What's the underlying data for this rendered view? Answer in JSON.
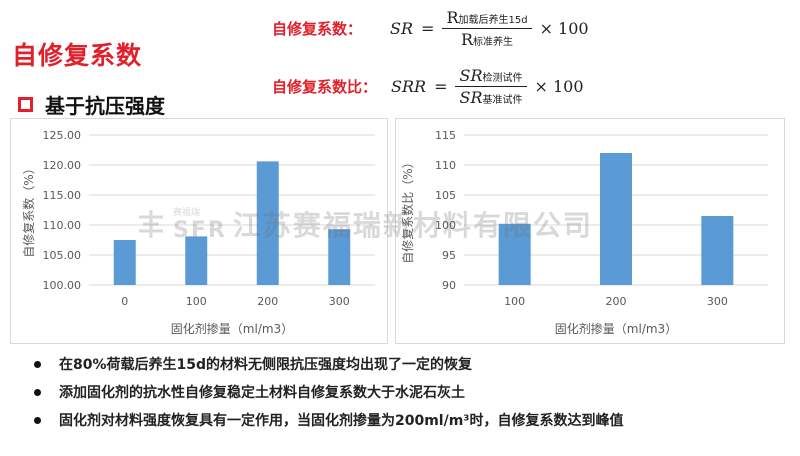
{
  "title": "自修复系数",
  "subtitle": "基于抗压强度",
  "formula1": {
    "label": "自修复系数：",
    "lhs": "SR",
    "num_base": "R",
    "num_sub": "加载后养生15d",
    "den_base": "R",
    "den_sub": "标准养生",
    "factor": "× 100"
  },
  "formula2": {
    "label": "自修复系数比：",
    "lhs": "SRR",
    "num_base": "SR",
    "num_sub": "检测试件",
    "den_base": "SR",
    "den_sub": "基准试件",
    "factor": "× 100"
  },
  "watermark": {
    "text": "江苏赛福瑞新材料有限公司",
    "logo": "SFR",
    "small": "赛福瑞"
  },
  "chart_data": [
    {
      "type": "bar",
      "categories": [
        "0",
        "100",
        "200",
        "300"
      ],
      "values": [
        107.5,
        108.1,
        120.6,
        109.3
      ],
      "xlabel": "固化剂掺量（ml/m3）",
      "ylabel": "自修复系数（%）",
      "ylim": [
        100,
        125
      ],
      "yticks": [
        "100.00",
        "105.00",
        "110.00",
        "115.00",
        "120.00",
        "125.00"
      ],
      "color": "#5b9bd5",
      "grid": true
    },
    {
      "type": "bar",
      "categories": [
        "100",
        "200",
        "300"
      ],
      "values": [
        100.2,
        112.0,
        101.5
      ],
      "xlabel": "固化剂掺量（ml/m3）",
      "ylabel": "自修复系数比（%）",
      "ylim": [
        90,
        115
      ],
      "yticks": [
        "90",
        "95",
        "100",
        "105",
        "110",
        "115"
      ],
      "color": "#5b9bd5",
      "grid": true
    }
  ],
  "bullets": [
    "在80%荷载后养生15d的材料无侧限抗压强度均出现了一定的恢复",
    "添加固化剂的抗水性自修复稳定土材料自修复系数大于水泥石灰土",
    "固化剂对材料强度恢复具有一定作用，当固化剂掺量为200ml/m³时，自修复系数达到峰值"
  ]
}
